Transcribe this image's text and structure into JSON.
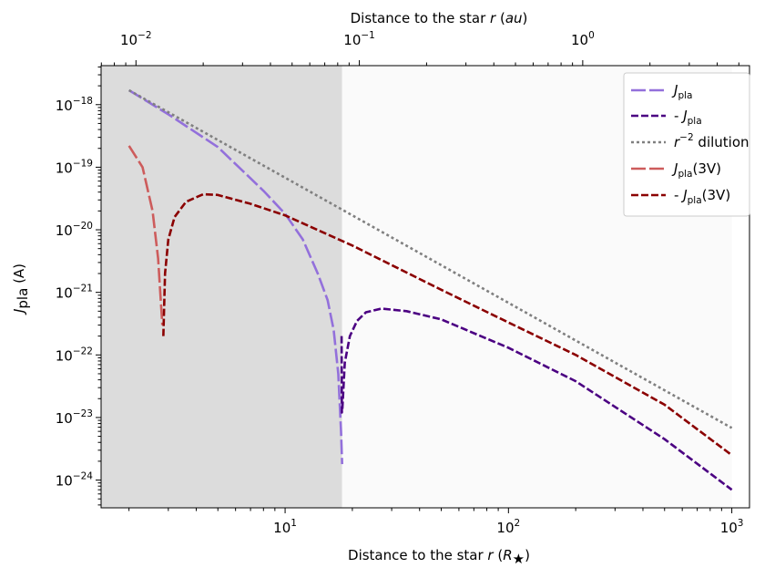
{
  "chart_data": {
    "type": "line",
    "x_scale": "log",
    "y_scale": "log",
    "xlim": [
      1.5,
      1200
    ],
    "ylim": [
      3.6e-25,
      4.2e-18
    ],
    "top_xlim_au": [
      0.00698,
      5.58
    ],
    "xlabel": "Distance to the star r (R★)",
    "ylabel": "Jpla (A)",
    "top_xlabel": "Distance to the star r (au)",
    "bottom_ticks": [
      {
        "value": 10,
        "exp": "1"
      },
      {
        "value": 100,
        "exp": "2"
      },
      {
        "value": 1000,
        "exp": "3"
      }
    ],
    "top_ticks": [
      {
        "value": 0.01,
        "exp": "−2"
      },
      {
        "value": 0.1,
        "exp": "−1"
      },
      {
        "value": 1,
        "exp": "0"
      }
    ],
    "y_ticks": [
      {
        "value": 1e-18,
        "exp": "−18"
      },
      {
        "value": 1e-19,
        "exp": "−19"
      },
      {
        "value": 1e-20,
        "exp": "−20"
      },
      {
        "value": 1e-21,
        "exp": "−21"
      },
      {
        "value": 1e-22,
        "exp": "−22"
      },
      {
        "value": 1e-23,
        "exp": "−23"
      },
      {
        "value": 1e-24,
        "exp": "−24"
      }
    ],
    "shaded_regions": [
      {
        "x_range": [
          1.5,
          18
        ],
        "color": "#dcdcdc"
      },
      {
        "x_range": [
          18,
          1000
        ],
        "color": "#fafafa"
      }
    ],
    "legend_position": "top-right",
    "series": [
      {
        "name": "Jpla",
        "color": "#9370db",
        "dash": "16,4",
        "points": [
          [
            2.0,
            1.7e-18
          ],
          [
            3.0,
            7e-19
          ],
          [
            5.0,
            2.1e-19
          ],
          [
            8.0,
            4.2e-20
          ],
          [
            10.0,
            1.8e-20
          ],
          [
            12.0,
            7e-21
          ],
          [
            14.0,
            2e-21
          ],
          [
            15.5,
            7.5e-22
          ],
          [
            16.5,
            2.5e-22
          ],
          [
            17.3,
            5e-23
          ],
          [
            17.8,
            6e-24
          ],
          [
            18.0,
            1.8e-24
          ]
        ]
      },
      {
        "name": "- Jpla",
        "color": "#4b0082",
        "dash": "8,3",
        "points": [
          [
            17.9,
            2e-22
          ],
          [
            17.95,
            1.2e-23
          ],
          [
            18.05,
            1.4e-23
          ],
          [
            18.5,
            7.5e-23
          ],
          [
            19.5,
            2e-22
          ],
          [
            21.0,
            3.5e-22
          ],
          [
            23.0,
            4.8e-22
          ],
          [
            27.0,
            5.5e-22
          ],
          [
            35.0,
            5e-22
          ],
          [
            50.0,
            3.7e-22
          ],
          [
            100.0,
            1.3e-22
          ],
          [
            200.0,
            3.8e-23
          ],
          [
            500.0,
            4.5e-24
          ],
          [
            1000.0,
            7e-25
          ]
        ]
      },
      {
        "name": "r^-2 dilution",
        "color": "#808080",
        "dash": "3,3",
        "points": [
          [
            2.0,
            1.7e-18
          ],
          [
            1000.0,
            6.8e-24
          ]
        ]
      },
      {
        "name": "Jpla(3V)",
        "color": "#cd5c5c",
        "dash": "16,4",
        "points": [
          [
            2.0,
            2.2e-19
          ],
          [
            2.3,
            1e-19
          ],
          [
            2.55,
            2e-20
          ],
          [
            2.7,
            3.5e-21
          ],
          [
            2.82,
            3e-22
          ]
        ]
      },
      {
        "name": "- Jpla(3V)",
        "color": "#8b0000",
        "dash": "8,3",
        "points": [
          [
            2.85,
            2e-22
          ],
          [
            2.87,
            5e-22
          ],
          [
            2.9,
            2e-21
          ],
          [
            3.0,
            7e-21
          ],
          [
            3.2,
            1.6e-20
          ],
          [
            3.6,
            2.8e-20
          ],
          [
            4.3,
            3.7e-20
          ],
          [
            5.0,
            3.6e-20
          ],
          [
            7.0,
            2.6e-20
          ],
          [
            10.0,
            1.7e-20
          ],
          [
            20.0,
            5.6e-21
          ],
          [
            50.0,
            1.1e-21
          ],
          [
            100.0,
            3.3e-22
          ],
          [
            200.0,
            1e-22
          ],
          [
            500.0,
            1.6e-23
          ],
          [
            1000.0,
            2.5e-24
          ]
        ]
      }
    ]
  }
}
